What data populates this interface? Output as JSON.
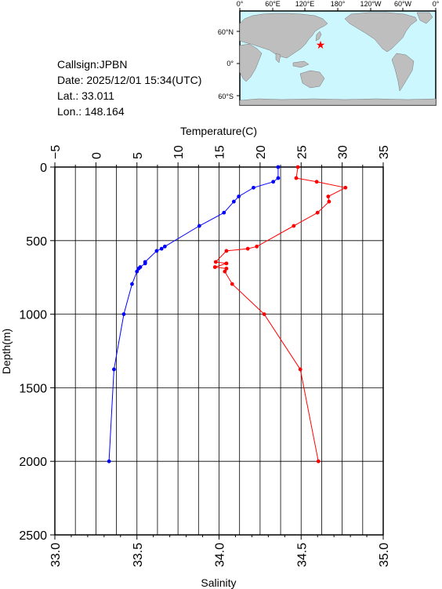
{
  "station": {
    "callsign": "Callsign:JPBN",
    "date": "Date:  2025/12/01 15:34(UTC)",
    "lat": "Lat.:  33.011",
    "lon": "Lon.:  148.164"
  },
  "map": {
    "lon_ticks": [
      "0°",
      "60°E",
      "120°E",
      "180°",
      "120°W",
      "60°W",
      "0°"
    ],
    "lat_ticks": [
      "60°N",
      "0°",
      "60°S"
    ],
    "marker": {
      "lat": 33.011,
      "lon": 148.164,
      "color": "#ff0000"
    },
    "ocean_color": "#ccf7ff",
    "land_color": "#bebebe"
  },
  "chart_data": {
    "type": "line",
    "title": "",
    "ylabel": "Depth(m)",
    "ylim": [
      0,
      2500
    ],
    "yticks": [
      "0",
      "500",
      "1000",
      "1500",
      "2000",
      "2500"
    ],
    "y_inverted": true,
    "grid": true,
    "temperature_axis": {
      "label": "Temperature(C)",
      "position": "top",
      "lim": [
        -5,
        35
      ],
      "ticks": [
        "−5",
        "0",
        "5",
        "10",
        "15",
        "20",
        "25",
        "30",
        "35"
      ]
    },
    "salinity_axis": {
      "label": "Salinity",
      "position": "bottom",
      "lim": [
        33.0,
        35.0
      ],
      "ticks": [
        "33.0",
        "33.5",
        "34.0",
        "34.5",
        "35.0"
      ]
    },
    "series": [
      {
        "key": "temperature",
        "color": "#ff0000",
        "axis": "temperature",
        "points": [
          {
            "x": 24.6,
            "y": 0
          },
          {
            "x": 24.4,
            "y": 75
          },
          {
            "x": 26.9,
            "y": 100
          },
          {
            "x": 30.4,
            "y": 140
          },
          {
            "x": 28.3,
            "y": 200
          },
          {
            "x": 28.4,
            "y": 235
          },
          {
            "x": 27.0,
            "y": 310
          },
          {
            "x": 24.1,
            "y": 400
          },
          {
            "x": 19.6,
            "y": 540
          },
          {
            "x": 18.5,
            "y": 555
          },
          {
            "x": 15.9,
            "y": 570
          },
          {
            "x": 14.6,
            "y": 645
          },
          {
            "x": 15.9,
            "y": 655
          },
          {
            "x": 14.5,
            "y": 680
          },
          {
            "x": 15.9,
            "y": 690
          },
          {
            "x": 15.7,
            "y": 710
          },
          {
            "x": 16.6,
            "y": 795
          },
          {
            "x": 20.5,
            "y": 1000
          },
          {
            "x": 24.9,
            "y": 1375
          },
          {
            "x": 27.1,
            "y": 2000
          }
        ]
      },
      {
        "key": "salinity",
        "color": "#0000ff",
        "axis": "salinity",
        "points": [
          {
            "x": 34.36,
            "y": 0
          },
          {
            "x": 34.36,
            "y": 75
          },
          {
            "x": 34.33,
            "y": 100
          },
          {
            "x": 34.21,
            "y": 140
          },
          {
            "x": 34.12,
            "y": 200
          },
          {
            "x": 34.09,
            "y": 235
          },
          {
            "x": 34.03,
            "y": 310
          },
          {
            "x": 33.88,
            "y": 400
          },
          {
            "x": 33.67,
            "y": 540
          },
          {
            "x": 33.65,
            "y": 555
          },
          {
            "x": 33.62,
            "y": 570
          },
          {
            "x": 33.55,
            "y": 645
          },
          {
            "x": 33.55,
            "y": 655
          },
          {
            "x": 33.52,
            "y": 680
          },
          {
            "x": 33.51,
            "y": 690
          },
          {
            "x": 33.5,
            "y": 710
          },
          {
            "x": 33.47,
            "y": 795
          },
          {
            "x": 33.42,
            "y": 1000
          },
          {
            "x": 33.36,
            "y": 1375
          },
          {
            "x": 33.33,
            "y": 2000
          }
        ]
      }
    ]
  }
}
